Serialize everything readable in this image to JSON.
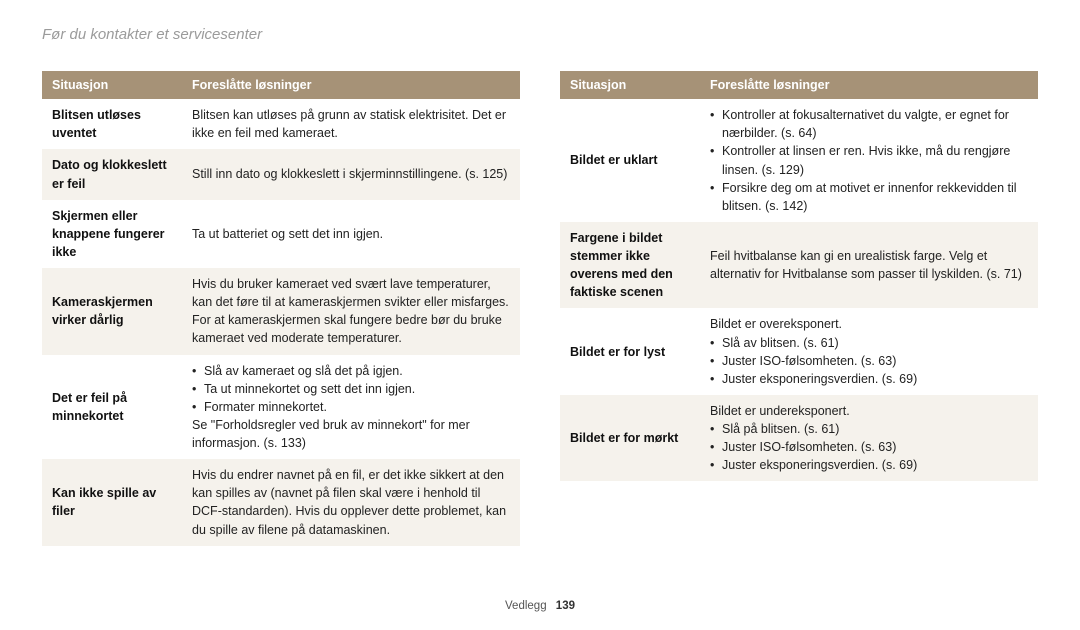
{
  "page_title": "Før du kontakter et servicesenter",
  "header": {
    "situation": "Situasjon",
    "solution": "Foreslåtte løsninger"
  },
  "footer": {
    "section": "Vedlegg",
    "page": "139"
  },
  "left": [
    {
      "alt": false,
      "sit": "Blitsen utløses uventet",
      "text": "Blitsen kan utløses på grunn av statisk elektrisitet. Det er ikke en feil med kameraet."
    },
    {
      "alt": true,
      "sit": "Dato og klokkeslett er feil",
      "text": "Still inn dato og klokkeslett i skjerminnstillingene. (s. 125)"
    },
    {
      "alt": false,
      "sit": "Skjermen eller knappene fungerer ikke",
      "text": "Ta ut batteriet og sett det inn igjen."
    },
    {
      "alt": true,
      "sit": "Kameraskjermen virker dårlig",
      "text": "Hvis du bruker kameraet ved svært lave temperaturer, kan det føre til at kameraskjermen svikter eller misfarges. For at kameraskjermen skal fungere bedre bør du bruke kameraet ved moderate temperaturer."
    },
    {
      "alt": false,
      "sit": "Det er feil på minnekortet",
      "bullets": [
        "Slå av kameraet og slå det på igjen.",
        "Ta ut minnekortet og sett det inn igjen.",
        "Formater minnekortet."
      ],
      "after": "Se \"Forholdsregler ved bruk av minnekort\" for mer informasjon. (s. 133)"
    },
    {
      "alt": true,
      "sit": "Kan ikke spille av filer",
      "text": "Hvis du endrer navnet på en fil, er det ikke sikkert at den kan spilles av (navnet på filen skal være i henhold til DCF-standarden). Hvis du opplever dette problemet, kan du spille av filene på datamaskinen."
    }
  ],
  "right": [
    {
      "alt": false,
      "sit": "Bildet er uklart",
      "bullets": [
        "Kontroller at fokusalternativet du valgte, er egnet for nærbilder. (s. 64)",
        "Kontroller at linsen er ren. Hvis ikke, må du rengjøre linsen. (s. 129)",
        "Forsikre deg om at motivet er innenfor rekkevidden til blitsen. (s. 142)"
      ]
    },
    {
      "alt": true,
      "sit": "Fargene i bildet stemmer ikke overens med den faktiske scenen",
      "text": "Feil hvitbalanse kan gi en urealistisk farge. Velg et alternativ for Hvitbalanse som passer til lyskilden. (s. 71)"
    },
    {
      "alt": false,
      "sit": "Bildet er for lyst",
      "before": "Bildet er overeksponert.",
      "bullets": [
        "Slå av blitsen. (s. 61)",
        "Juster ISO-følsomheten. (s. 63)",
        "Juster eksponeringsverdien. (s. 69)"
      ]
    },
    {
      "alt": true,
      "sit": "Bildet er for mørkt",
      "before": "Bildet er undereksponert.",
      "bullets": [
        "Slå på blitsen. (s. 61)",
        "Juster ISO-følsomheten. (s. 63)",
        "Juster eksponeringsverdien. (s. 69)"
      ]
    }
  ]
}
